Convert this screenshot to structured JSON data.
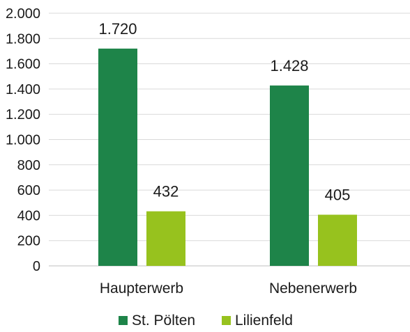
{
  "chart_data": {
    "type": "bar",
    "categories": [
      "Haupterwerb",
      "Nebenerwerb"
    ],
    "series": [
      {
        "name": "St. Pölten",
        "color": "#1e8449",
        "values": [
          1720,
          1428
        ],
        "labels": [
          "1.720",
          "1.428"
        ]
      },
      {
        "name": "Lilienfeld",
        "color": "#97c21e",
        "values": [
          432,
          405
        ],
        "labels": [
          "432",
          "405"
        ]
      }
    ],
    "ylim": [
      0,
      2000
    ],
    "yticks": [
      0,
      200,
      400,
      600,
      800,
      1000,
      1200,
      1400,
      1600,
      1800,
      2000
    ],
    "ytick_labels": [
      "0",
      "200",
      "400",
      "600",
      "800",
      "1.000",
      "1.200",
      "1.400",
      "1.600",
      "1.800",
      "2.000"
    ],
    "grid": true,
    "legend": "bottom"
  }
}
